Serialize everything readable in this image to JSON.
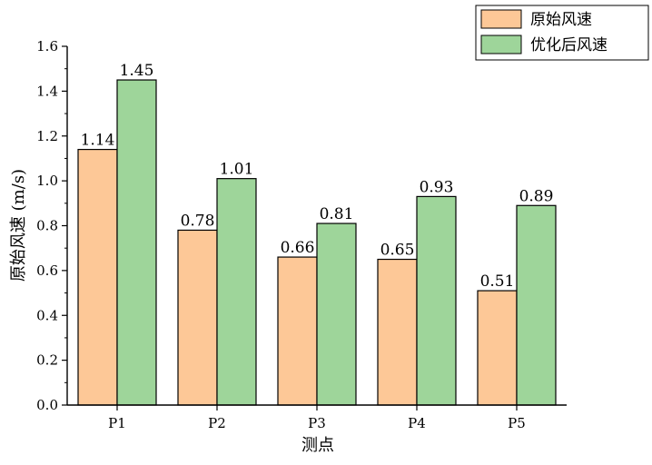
{
  "chart_data": {
    "type": "bar",
    "title": "",
    "xlabel": "测点",
    "ylabel": "原始风速 (m/s)",
    "categories": [
      "P1",
      "P2",
      "P3",
      "P4",
      "P5"
    ],
    "ylim": [
      0,
      1.6
    ],
    "yticks": [
      "0.0",
      "0.2",
      "0.4",
      "0.6",
      "0.8",
      "1.0",
      "1.2",
      "1.4",
      "1.6"
    ],
    "series": [
      {
        "name": "原始风速",
        "values": [
          1.14,
          0.78,
          0.66,
          0.65,
          0.51
        ],
        "labels": [
          "1.14",
          "0.78",
          "0.66",
          "0.65",
          "0.51"
        ],
        "color": "#FDC897"
      },
      {
        "name": "优化后风速",
        "values": [
          1.45,
          1.01,
          0.81,
          0.93,
          0.89
        ],
        "labels": [
          "1.45",
          "1.01",
          "0.81",
          "0.93",
          "0.89"
        ],
        "color": "#9ED59A"
      }
    ],
    "legend_position": "top-right",
    "grid": false
  }
}
